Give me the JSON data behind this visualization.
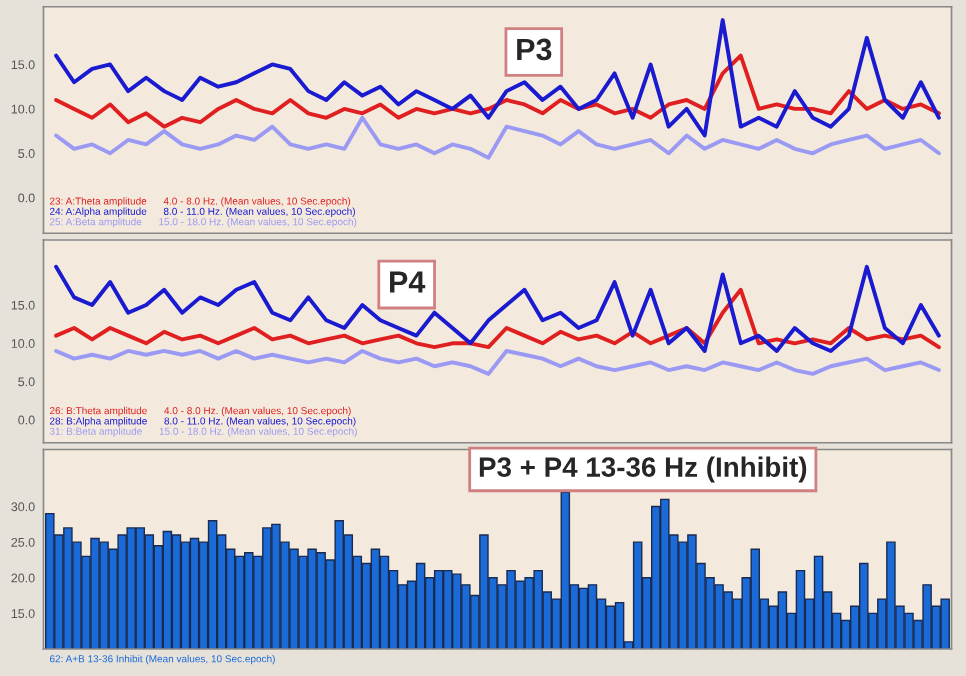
{
  "chart_data": [
    {
      "type": "line",
      "title": "P3",
      "legend": "bottom left",
      "tick_labels": "y",
      "grid": false,
      "ylim": [
        -4,
        21.5
      ],
      "yticks": [
        {
          "value": 0,
          "label": "0.0"
        },
        {
          "value": 5,
          "label": "5.0"
        },
        {
          "value": 10,
          "label": "10.0"
        },
        {
          "value": 15,
          "label": "15.0"
        }
      ],
      "categories": [
        null,
        null,
        null,
        null,
        null,
        null,
        null,
        null,
        null,
        null,
        null,
        null,
        null,
        null,
        null,
        null,
        null,
        null,
        null,
        null,
        null,
        null,
        null,
        null,
        null,
        null,
        null,
        null,
        null,
        null,
        null,
        null,
        null,
        null,
        null,
        null,
        null,
        null,
        null,
        null,
        null,
        null,
        null,
        null,
        null,
        null,
        null,
        null,
        null,
        null
      ],
      "series": [
        {
          "name": "23: A:Theta amplitude      4.0 - 8.0 Hz. (Mean values, 10 Sec.epoch)",
          "color": "#e02020",
          "values": [
            11,
            10,
            9,
            10.5,
            8.5,
            9.5,
            8,
            9,
            8.5,
            10,
            11,
            10,
            9.5,
            11,
            9.5,
            9,
            10,
            9.5,
            10.5,
            9,
            10,
            9.5,
            10,
            9.5,
            10,
            11,
            10.5,
            9.5,
            11,
            10,
            10.5,
            9.5,
            10,
            9,
            10.5,
            11,
            10,
            14,
            16,
            10,
            10.5,
            10,
            10,
            9.5,
            12,
            10,
            11,
            10,
            10.5,
            9.5
          ]
        },
        {
          "name": "24: A:Alpha amplitude      8.0 - 11.0 Hz. (Mean values, 10 Sec.epoch)",
          "color": "#1a1ad0",
          "values": [
            16,
            13,
            14.5,
            15,
            12,
            13.5,
            12,
            11,
            13.5,
            12.5,
            13,
            14,
            15,
            14.5,
            12,
            11,
            13,
            11.5,
            12.5,
            10.5,
            12,
            11,
            10,
            11.5,
            9,
            12,
            13,
            11,
            12.5,
            10,
            11,
            14,
            9,
            15,
            8,
            10,
            7,
            20,
            8,
            9,
            8,
            12,
            9,
            8,
            10,
            18,
            11,
            9,
            13,
            9
          ]
        },
        {
          "name": "25: A:Beta amplitude      15.0 - 18.0 Hz. (Mean values, 10 Sec.epoch)",
          "color": "#9a9af5",
          "values": [
            7,
            5.5,
            6,
            5,
            6.5,
            6,
            7.5,
            6,
            5.5,
            6,
            7,
            6.5,
            8,
            6,
            5.5,
            6,
            5.5,
            9,
            6,
            5.5,
            6,
            5,
            6,
            5.5,
            4.5,
            8,
            7.5,
            7,
            6,
            7.5,
            6,
            5.5,
            6,
            6.5,
            5,
            7,
            5.5,
            6.5,
            6,
            5.5,
            6.5,
            5.5,
            5,
            6,
            6.5,
            7,
            5.5,
            6,
            6.5,
            5
          ]
        }
      ]
    },
    {
      "type": "line",
      "title": "P4",
      "legend": "bottom left",
      "tick_labels": "y",
      "grid": false,
      "ylim": [
        -3,
        23.5
      ],
      "yticks": [
        {
          "value": 0,
          "label": "0.0"
        },
        {
          "value": 5,
          "label": "5.0"
        },
        {
          "value": 10,
          "label": "10.0"
        },
        {
          "value": 15,
          "label": "15.0"
        }
      ],
      "categories": [
        null,
        null,
        null,
        null,
        null,
        null,
        null,
        null,
        null,
        null,
        null,
        null,
        null,
        null,
        null,
        null,
        null,
        null,
        null,
        null,
        null,
        null,
        null,
        null,
        null,
        null,
        null,
        null,
        null,
        null,
        null,
        null,
        null,
        null,
        null,
        null,
        null,
        null,
        null,
        null,
        null,
        null,
        null,
        null,
        null,
        null,
        null,
        null,
        null,
        null
      ],
      "series": [
        {
          "name": "26: B:Theta amplitude      4.0 - 8.0 Hz. (Mean values, 10 Sec.epoch)",
          "color": "#e02020",
          "values": [
            11,
            12,
            10.5,
            12,
            11,
            10,
            11.5,
            10.5,
            11,
            10,
            11,
            12,
            10.5,
            11,
            10,
            10.5,
            11,
            10,
            10.5,
            11,
            10,
            9.5,
            10,
            10,
            9.5,
            12,
            11,
            10,
            11.5,
            10.5,
            11,
            10,
            11.5,
            10,
            11,
            12,
            10,
            14,
            17,
            10,
            10.5,
            10,
            10.5,
            10,
            12,
            10.5,
            11,
            10.5,
            11,
            9.5
          ]
        },
        {
          "name": "28: B:Alpha amplitude      8.0 - 11.0 Hz. (Mean values, 10 Sec.epoch)",
          "color": "#1a1ad0",
          "values": [
            20,
            16,
            15,
            18,
            14,
            15,
            17,
            14,
            16,
            15,
            17,
            18,
            14,
            13,
            16,
            13,
            12,
            15,
            13,
            12,
            11,
            14,
            12,
            10,
            13,
            15,
            17,
            13,
            14,
            12,
            13,
            18,
            11,
            17,
            10,
            12,
            9,
            19,
            10,
            11,
            9,
            12,
            10,
            9,
            11,
            20,
            12,
            10,
            15,
            11
          ]
        },
        {
          "name": "31: B:Beta amplitude      15.0 - 18.0 Hz. (Mean values, 10 Sec.epoch)",
          "color": "#9a9af5",
          "values": [
            9,
            8,
            8.5,
            8,
            9,
            8.5,
            9,
            8.5,
            9,
            8,
            9,
            8,
            8.5,
            8,
            7.5,
            8,
            7.5,
            9,
            8,
            7.5,
            8,
            7,
            7.5,
            7,
            6,
            9,
            8.5,
            8,
            7,
            8,
            7,
            6.5,
            7,
            7.5,
            6.5,
            7,
            6.5,
            7.5,
            7,
            6.5,
            7.5,
            6.5,
            6,
            7,
            7.5,
            8,
            6.5,
            7,
            7.5,
            6.5
          ]
        }
      ]
    },
    {
      "type": "bar",
      "title": "P3 + P4 13-36 Hz (Inhibit)",
      "legend": "bottom",
      "tick_labels": "y",
      "grid": false,
      "ylim": [
        10,
        38
      ],
      "yticks": [
        {
          "value": 15,
          "label": "15.0"
        },
        {
          "value": 20,
          "label": "20.0"
        },
        {
          "value": 25,
          "label": "25.0"
        },
        {
          "value": 30,
          "label": "30.0"
        }
      ],
      "categories": [
        null,
        null,
        null,
        null,
        null,
        null,
        null,
        null,
        null,
        null,
        null,
        null,
        null,
        null,
        null,
        null,
        null,
        null,
        null,
        null,
        null,
        null,
        null,
        null,
        null,
        null,
        null,
        null,
        null,
        null,
        null,
        null,
        null,
        null,
        null,
        null,
        null,
        null,
        null,
        null,
        null,
        null,
        null,
        null,
        null,
        null,
        null,
        null,
        null,
        null,
        null,
        null,
        null,
        null,
        null,
        null,
        null,
        null,
        null,
        null,
        null,
        null,
        null,
        null,
        null,
        null,
        null,
        null,
        null,
        null,
        null,
        null,
        null,
        null,
        null,
        null,
        null,
        null,
        null,
        null,
        null,
        null,
        null,
        null,
        null,
        null,
        null,
        null,
        null,
        null,
        null,
        null,
        null,
        null,
        null,
        null,
        null,
        null,
        null,
        null
      ],
      "series": [
        {
          "name": "62: A+B 13-36 Inhibit (Mean values, 10 Sec.epoch)",
          "color": "#1a6ad8",
          "values": [
            29,
            26,
            27,
            25,
            23,
            25.5,
            25,
            24,
            26,
            27,
            27,
            26,
            24.5,
            26.5,
            26,
            25,
            25.5,
            25,
            28,
            26,
            24,
            23,
            23.5,
            23,
            27,
            27.5,
            25,
            24,
            23,
            24,
            23.5,
            22.5,
            28,
            26,
            23,
            22,
            24,
            23,
            21,
            19,
            19.5,
            22,
            20,
            21,
            21,
            20.5,
            19,
            17.5,
            26,
            20,
            19,
            21,
            19.5,
            20,
            21,
            18,
            17,
            32,
            19,
            18.5,
            19,
            17,
            16,
            16.5,
            11,
            25,
            20,
            30,
            31,
            26,
            25,
            26,
            22,
            20,
            19,
            18,
            17,
            20,
            24,
            17,
            16,
            18,
            15,
            21,
            17,
            23,
            18,
            15,
            14,
            16,
            22,
            15,
            17,
            25,
            16,
            15,
            14,
            19,
            16,
            17
          ]
        }
      ]
    }
  ]
}
